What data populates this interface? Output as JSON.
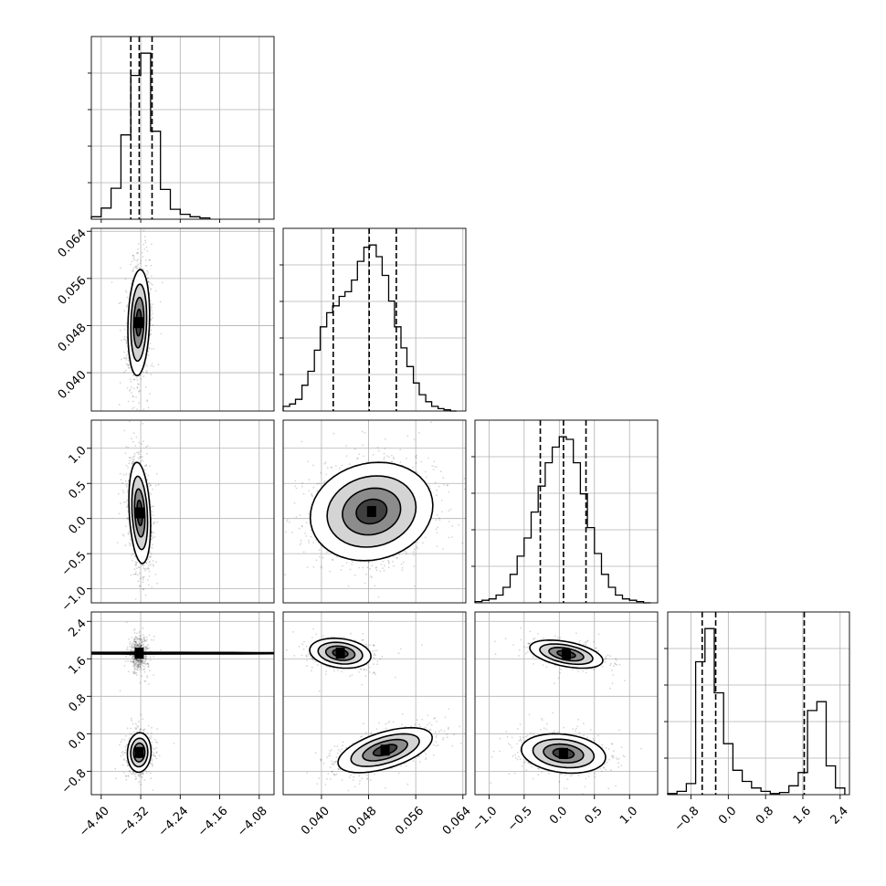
{
  "chart_data": {
    "type": "corner",
    "grid": true,
    "parameters": 4,
    "axes": [
      {
        "range": [
          -4.42,
          -4.05
        ],
        "ticks": [
          -4.4,
          -4.32,
          -4.24,
          -4.16,
          -4.08
        ],
        "tick_labels": [
          "−4.40",
          "−4.32",
          "−4.24",
          "−4.16",
          "−4.08"
        ]
      },
      {
        "range": [
          0.0335,
          0.0645
        ],
        "ticks": [
          0.04,
          0.048,
          0.056,
          0.064
        ],
        "tick_labels": [
          "0.040",
          "0.048",
          "0.056",
          "0.064"
        ]
      },
      {
        "range": [
          -1.2,
          1.4
        ],
        "ticks": [
          -1.0,
          -0.5,
          0.0,
          0.5,
          1.0
        ],
        "tick_labels": [
          "−1.0",
          "−0.5",
          "0.0",
          "0.5",
          "1.0"
        ]
      },
      {
        "range": [
          -1.3,
          2.6
        ],
        "ticks": [
          -0.8,
          0.0,
          0.8,
          1.6,
          2.4
        ],
        "tick_labels": [
          "−0.8",
          "0.0",
          "0.8",
          "1.6",
          "2.4"
        ]
      }
    ],
    "histograms": [
      {
        "bins": [
          -4.42,
          -4.4,
          -4.38,
          -4.36,
          -4.34,
          -4.32,
          -4.3,
          -4.28,
          -4.26,
          -4.24,
          -4.22,
          -4.2,
          -4.18
        ],
        "counts": [
          2,
          9,
          25,
          68,
          116,
          134,
          71,
          24,
          8,
          4,
          2,
          1
        ],
        "quantiles": [
          -4.34,
          -4.323,
          -4.297
        ]
      },
      {
        "bins": [
          0.0335,
          0.0346,
          0.0356,
          0.0367,
          0.0377,
          0.0388,
          0.0398,
          0.0409,
          0.0419,
          0.043,
          0.044,
          0.0451,
          0.0461,
          0.0472,
          0.0482,
          0.0493,
          0.0503,
          0.0514,
          0.0524,
          0.0535,
          0.0545,
          0.0556,
          0.0566,
          0.0577,
          0.0587,
          0.0598,
          0.0608,
          0.0619,
          0.0629
        ],
        "counts": [
          4,
          6,
          10,
          22,
          34,
          52,
          72,
          84,
          90,
          98,
          102,
          112,
          128,
          140,
          142,
          132,
          116,
          94,
          72,
          54,
          38,
          24,
          14,
          8,
          4,
          2,
          1,
          0
        ],
        "quantiles": [
          0.042,
          0.0481,
          0.0527
        ]
      },
      {
        "bins": [
          -1.2,
          -1.1,
          -1.0,
          -0.9,
          -0.8,
          -0.7,
          -0.6,
          -0.5,
          -0.4,
          -0.3,
          -0.2,
          -0.1,
          0.0,
          0.1,
          0.2,
          0.3,
          0.4,
          0.5,
          0.6,
          0.7,
          0.8,
          0.9,
          1.0,
          1.1,
          1.2,
          1.3
        ],
        "counts": [
          1,
          2,
          3,
          6,
          12,
          22,
          36,
          50,
          70,
          90,
          108,
          120,
          128,
          126,
          108,
          84,
          58,
          38,
          22,
          12,
          6,
          3,
          2,
          1,
          0
        ],
        "quantiles": [
          -0.27,
          0.06,
          0.38
        ]
      },
      {
        "bins": [
          -1.3,
          -1.1,
          -0.9,
          -0.7,
          -0.5,
          -0.3,
          -0.1,
          0.1,
          0.3,
          0.5,
          0.7,
          0.9,
          1.1,
          1.3,
          1.5,
          1.7,
          1.9,
          2.1,
          2.3,
          2.5
        ],
        "counts": [
          1,
          3,
          10,
          120,
          150,
          92,
          46,
          22,
          12,
          6,
          3,
          1,
          2,
          8,
          20,
          76,
          84,
          26,
          6
        ],
        "quantiles": [
          -0.56,
          -0.27,
          1.63
        ]
      }
    ]
  }
}
